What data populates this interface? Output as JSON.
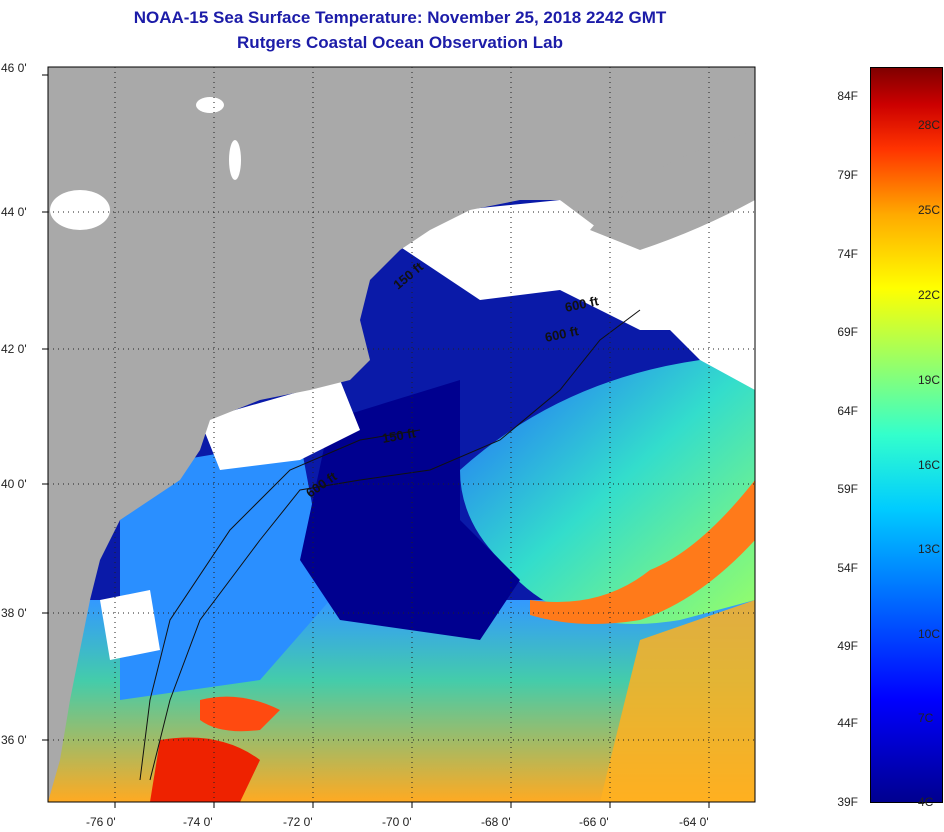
{
  "title": "NOAA-15 Sea Surface Temperature:  November 25, 2018 2242 GMT",
  "subtitle": "Rutgers Coastal Ocean Observation Lab",
  "lat_labels": [
    "46 0'",
    "44 0'",
    "42 0'",
    "40 0'",
    "38 0'",
    "36 0'"
  ],
  "lon_labels": [
    "-76 0'",
    "-74 0'",
    "-72 0'",
    "-70 0'",
    "-68 0'",
    "-66 0'",
    "-64 0'"
  ],
  "depth_labels": [
    "600 ft",
    "600 ft",
    "150 ft",
    "150 ft",
    "600 ft"
  ],
  "colorbar": {
    "fahrenheit": [
      "84F",
      "79F",
      "74F",
      "69F",
      "64F",
      "59F",
      "54F",
      "49F",
      "44F",
      "39F"
    ],
    "celsius": [
      "28C",
      "25C",
      "22C",
      "19C",
      "16C",
      "13C",
      "10C",
      "7C",
      "4C"
    ]
  },
  "colors": {
    "title": "#1c1ca8",
    "land": "#a9a9a9",
    "cloud": "#ffffff",
    "cold_water": "#00008f",
    "warm_water": "#ff3300"
  }
}
